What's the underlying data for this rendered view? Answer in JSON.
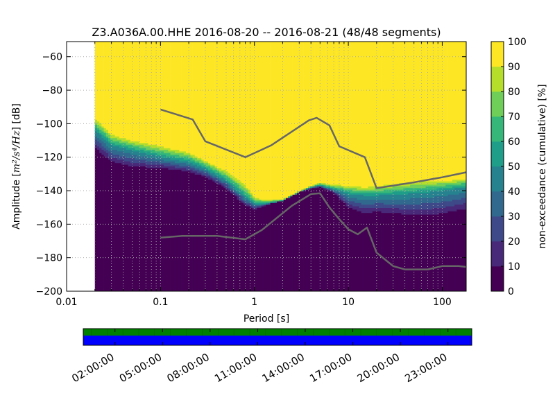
{
  "chart_data": {
    "type": "heatmap",
    "title": "Z3.A036A.00.HHE   2016-08-20 -- 2016-08-21  (48/48 segments)",
    "xlabel": "Period [s]",
    "ylabel_prefix": "Amplitude [",
    "ylabel_units": "m²/s⁴/Hz",
    "ylabel_suffix": "] [dB]",
    "x_scale": "log",
    "xlim": [
      0.01,
      180
    ],
    "ylim": [
      -200,
      -51
    ],
    "x_ticks": [
      {
        "value": 0.01,
        "label": "0.01"
      },
      {
        "value": 0.1,
        "label": "0.1"
      },
      {
        "value": 1,
        "label": "1"
      },
      {
        "value": 10,
        "label": "10"
      },
      {
        "value": 100,
        "label": "100"
      }
    ],
    "y_ticks": [
      {
        "value": -60,
        "label": "−60"
      },
      {
        "value": -80,
        "label": "−80"
      },
      {
        "value": -100,
        "label": "−100"
      },
      {
        "value": -120,
        "label": "−120"
      },
      {
        "value": -140,
        "label": "−140"
      },
      {
        "value": -160,
        "label": "−160"
      },
      {
        "value": -180,
        "label": "−180"
      },
      {
        "value": -200,
        "label": "−200"
      }
    ],
    "grid": true,
    "data_start_period": 0.02,
    "colorbar": {
      "label": "non-exceedance (cumulative) [%]",
      "range": [
        0,
        100
      ],
      "ticks": [
        "0",
        "10",
        "20",
        "30",
        "40",
        "50",
        "60",
        "70",
        "80",
        "90",
        "100"
      ],
      "colors": [
        "#440154",
        "#482878",
        "#3e4989",
        "#31688e",
        "#26828e",
        "#1f9e89",
        "#35b779",
        "#6ece58",
        "#b5de2b",
        "#fde725"
      ]
    },
    "percentile_bands": {
      "period": [
        0.02,
        0.03,
        0.05,
        0.1,
        0.2,
        0.3,
        0.5,
        0.8,
        1.0,
        1.3,
        2,
        3,
        4,
        5,
        7,
        10,
        15,
        20,
        40,
        70,
        100,
        180
      ],
      "p0": [
        -117,
        -125,
        -128,
        -128,
        -130,
        -133,
        -140,
        -150,
        -152,
        -149,
        -146,
        -141,
        -139,
        -138,
        -142,
        -152,
        -156,
        -155,
        -157,
        -158,
        -157,
        -154
      ],
      "p50": [
        -104,
        -113,
        -116,
        -120,
        -123,
        -127,
        -134,
        -144,
        -148,
        -148,
        -146,
        -141,
        -138,
        -137,
        -139,
        -142,
        -143,
        -143,
        -142,
        -141,
        -140,
        -138
      ],
      "p100": [
        -95,
        -105,
        -109,
        -112,
        -116,
        -121,
        -127,
        -135,
        -143,
        -145,
        -145,
        -140,
        -137,
        -135,
        -136,
        -136,
        -137,
        -136,
        -134,
        -133,
        -133,
        -132
      ]
    },
    "series": [
      {
        "name": "",
        "color": "#666666",
        "x": [
          0.1,
          0.22,
          0.3,
          0.8,
          1.5,
          3.8,
          4.6,
          6.3,
          8,
          15,
          20,
          50,
          100,
          180
        ],
        "y": [
          -91.5,
          -97.5,
          -110.5,
          -120,
          -113,
          -98,
          -96.5,
          -101,
          -113.5,
          -120,
          -138.5,
          -135,
          -132,
          -129
        ]
      },
      {
        "name": "",
        "color": "#666666",
        "x": [
          0.1,
          0.17,
          0.4,
          0.8,
          1.2,
          2.5,
          4.0,
          5.0,
          6.3,
          8,
          10,
          12.6,
          15.8,
          20,
          30,
          40,
          70,
          100,
          150,
          180
        ],
        "y": [
          -168,
          -167,
          -167,
          -169,
          -163.5,
          -149,
          -142,
          -141.5,
          -150,
          -157,
          -163,
          -166,
          -162,
          -177,
          -185,
          -187,
          -187,
          -185,
          -185,
          -185.5
        ]
      }
    ],
    "timeline": {
      "tick_labels": [
        "02:00:00",
        "05:00:00",
        "08:00:00",
        "11:00:00",
        "14:00:00",
        "17:00:00",
        "20:00:00",
        "23:00:00"
      ],
      "tick_hours": [
        2,
        5,
        8,
        11,
        14,
        17,
        20,
        23
      ],
      "range_hours": [
        0,
        24.5
      ],
      "segment_hours": [
        0.5,
        1.5,
        2.5,
        3.5,
        4.5,
        5.5,
        6.5,
        7.5,
        8.5,
        9.5,
        10.5,
        11.5,
        12.5,
        13.5,
        14.5,
        15.5,
        16.5,
        17.5,
        18.5,
        19.5,
        20.5,
        21.5,
        22.5,
        23.5
      ],
      "data_color": "#008000",
      "gap_free_color": "#0000ff"
    }
  }
}
